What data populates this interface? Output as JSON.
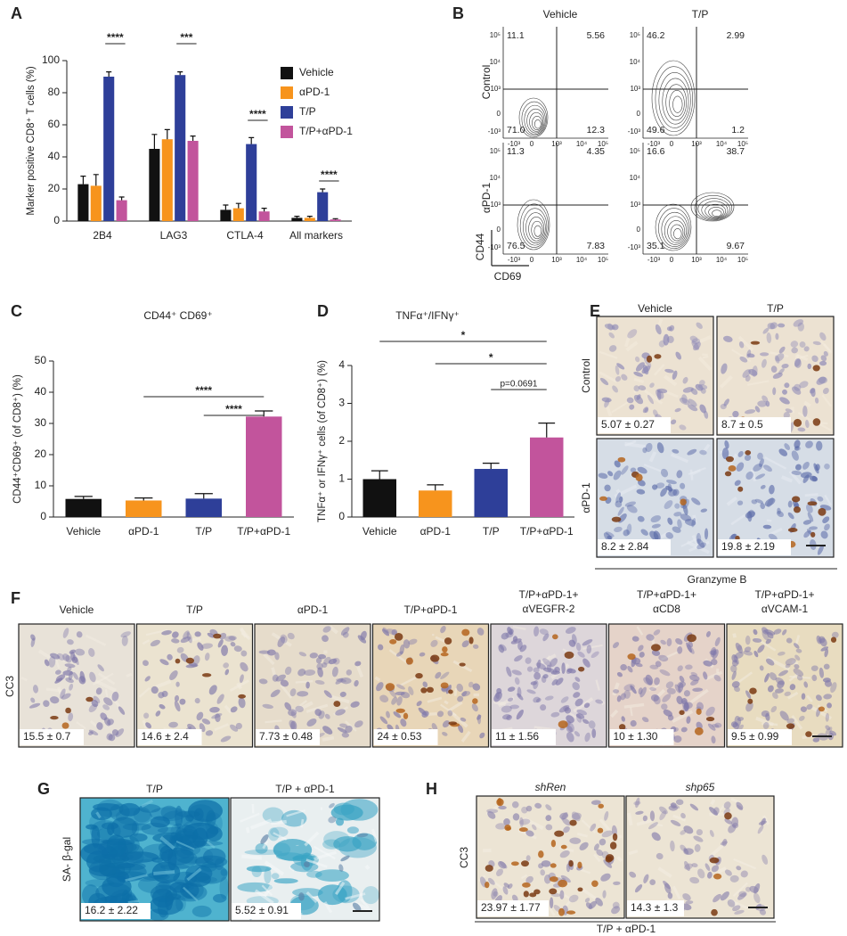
{
  "panel_labels": [
    "A",
    "B",
    "C",
    "D",
    "E",
    "F",
    "G",
    "H"
  ],
  "chart_data": [
    {
      "type": "bar",
      "y_label": "Marker positive CD8⁺ T cells (%)",
      "categories": [
        "2B4",
        "LAG3",
        "CTLA-4",
        "All markers"
      ],
      "series": [
        {
          "name": "Vehicle",
          "color": "#111111",
          "values": [
            23,
            45,
            7,
            2
          ],
          "errors": [
            5,
            9,
            3,
            1
          ]
        },
        {
          "name": "αPD-1",
          "color": "#f7941d",
          "values": [
            22,
            51,
            8,
            2
          ],
          "errors": [
            7,
            6,
            3,
            1
          ]
        },
        {
          "name": "T/P",
          "color": "#2e3f99",
          "values": [
            90,
            91,
            48,
            18
          ],
          "errors": [
            3,
            2,
            4,
            2
          ]
        },
        {
          "name": "T/P+αPD-1",
          "color": "#c2549c",
          "values": [
            13,
            50,
            6,
            1
          ],
          "errors": [
            2,
            3,
            2,
            0.5
          ]
        }
      ],
      "ylim": [
        0,
        100
      ],
      "yticks": [
        0,
        20,
        40,
        60,
        80,
        100
      ],
      "annotations": [
        "****",
        "***",
        "****",
        "****"
      ]
    },
    {
      "type": "bar",
      "title": "CD44⁺ CD69⁺",
      "y_label": "CD44⁺CD69⁺ (of CD8⁺) (%)",
      "categories": [
        "Vehicle",
        "αPD-1",
        "T/P",
        "T/P+αPD-1"
      ],
      "values": [
        5.8,
        5.3,
        5.9,
        32.2
      ],
      "errors": [
        0.8,
        0.8,
        1.6,
        1.8
      ],
      "colors": [
        "#111111",
        "#f7941d",
        "#2e3f99",
        "#c2549c"
      ],
      "ylim": [
        0,
        50
      ],
      "yticks": [
        0,
        10,
        20,
        30,
        40,
        50
      ],
      "annotations": [
        "****",
        "****"
      ]
    },
    {
      "type": "bar",
      "title": "TNFα⁺/IFNγ⁺",
      "y_label": "TNFα⁺ or IFNγ⁺ cells (of CD8⁺) (%)",
      "categories": [
        "Vehicle",
        "αPD-1",
        "T/P",
        "T/P+αPD-1"
      ],
      "values": [
        1.0,
        0.7,
        1.27,
        2.1
      ],
      "errors": [
        0.22,
        0.15,
        0.15,
        0.38
      ],
      "colors": [
        "#111111",
        "#f7941d",
        "#2e3f99",
        "#c2549c"
      ],
      "ylim": [
        0,
        4
      ],
      "yticks": [
        0,
        1,
        2,
        3,
        4
      ],
      "annotations": [
        "*",
        "*",
        "p=0.0691"
      ]
    }
  ],
  "flow": {
    "columns": [
      "Vehicle",
      "T/P"
    ],
    "rows": [
      "Control",
      "αPD-1"
    ],
    "quadrants": [
      [
        [
          "11.1",
          "5.56",
          "71.0",
          "12.3"
        ],
        [
          "46.2",
          "2.99",
          "49.6",
          "1.2"
        ]
      ],
      [
        [
          "11.3",
          "4.35",
          "76.5",
          "7.83"
        ],
        [
          "16.6",
          "38.7",
          "35.1",
          "9.67"
        ]
      ]
    ],
    "x_label": "CD69",
    "y_label": "CD44",
    "x_ticks": [
      "-10³",
      "0",
      "10³",
      "10⁴",
      "10⁵"
    ],
    "y_ticks": [
      "10⁵",
      "10⁴",
      "10³",
      "0",
      "-10³"
    ]
  },
  "granzyme": {
    "columns": [
      "Vehicle",
      "T/P"
    ],
    "rows": [
      "Control",
      "αPD-1"
    ],
    "values": [
      [
        "5.07 ± 0.27",
        "8.7 ± 0.5"
      ],
      [
        "8.2 ± 2.84",
        "19.8 ± 2.19"
      ]
    ],
    "caption": "Granzyme B"
  },
  "cc3": {
    "row_label": "CC3",
    "columns": [
      [
        "Vehicle"
      ],
      [
        "T/P"
      ],
      [
        "αPD-1"
      ],
      [
        "T/P+αPD-1"
      ],
      [
        "T/P+αPD-1+",
        "αVEGFR-2"
      ],
      [
        "T/P+αPD-1+",
        "αCD8"
      ],
      [
        "T/P+αPD-1+",
        "αVCAM-1"
      ]
    ],
    "values": [
      "15.5 ± 0.7",
      "14.6 ± 2.4",
      "7.73 ± 0.48",
      "24 ± 0.53",
      "11 ± 1.56",
      "10 ± 1.30",
      "9.5 ± 0.99"
    ]
  },
  "sa_gal": {
    "row_label": "SA- β-gal",
    "columns": [
      "T/P",
      "T/P +  αPD-1"
    ],
    "values": [
      "16.2 ± 2.22",
      "5.52 ± 0.91"
    ]
  },
  "knockdown": {
    "row_label": "CC3",
    "columns": [
      "shRen",
      "shp65"
    ],
    "values": [
      "23.97 ± 1.77",
      "14.3 ± 1.3"
    ],
    "caption": "T/P +  αPD-1"
  }
}
